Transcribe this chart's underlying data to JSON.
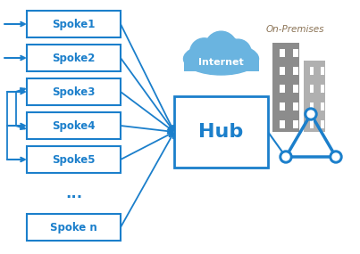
{
  "bg_color": "#ffffff",
  "blue": "#1b7fcb",
  "light_blue": "#5aabde",
  "cloud_blue": "#6ab4e0",
  "gray_dark": "#808080",
  "gray_light": "#a8a8a8",
  "tan": "#8B7355",
  "spoke_labels": [
    "Spoke1",
    "Spoke2",
    "Spoke3",
    "Spoke4",
    "Spoke5",
    "...",
    "Spoke n"
  ],
  "hub_label": "Hub",
  "internet_label": "Internet",
  "on_premises_label": "On-Premises",
  "fig_w": 4.03,
  "fig_h": 2.85,
  "dpi": 100
}
